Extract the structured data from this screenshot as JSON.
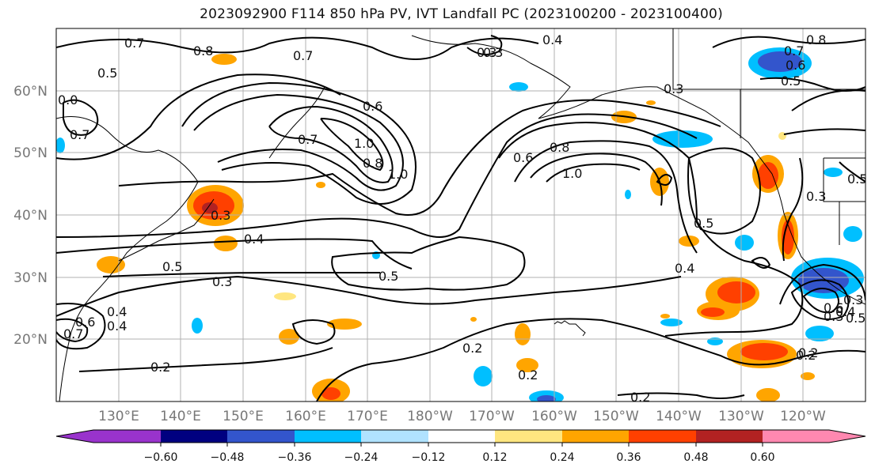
{
  "title": "2023092900 F114 850 hPa PV, IVT Landfall PC (2023100200 - 2023100400)",
  "lat_labels": [
    "60°N",
    "50°N",
    "40°N",
    "30°N",
    "20°N"
  ],
  "lon_labels": [
    "130°E",
    "140°E",
    "150°E",
    "160°E",
    "170°E",
    "180°W",
    "170°W",
    "160°W",
    "150°W",
    "140°W",
    "130°W",
    "120°W"
  ],
  "colorbar": {
    "ticks": [
      "−0.60",
      "−0.48",
      "−0.36",
      "−0.24",
      "−0.12",
      "0.12",
      "0.24",
      "0.36",
      "0.48",
      "0.60"
    ],
    "colors": [
      "#9933cc",
      "#000080",
      "#3355cc",
      "#00bfff",
      "#b0e2ff",
      "#ffffff",
      "#ffe680",
      "#ffa500",
      "#ff4000",
      "#b22222",
      "#ff88b0"
    ]
  },
  "contour_labels": [
    "0.7",
    "0.8",
    "0.5",
    "0.7",
    "0.4",
    "0.3",
    "0.8",
    "0.7",
    "0.6",
    "0.5",
    "0.6",
    "1.0",
    "0.8",
    "1.0",
    "0.6",
    "0.8",
    "1.0",
    "0.3",
    "0.7",
    "0.4",
    "0.5",
    "0.3",
    "0.5",
    "0.3",
    "0.5",
    "0.4",
    "0.3",
    "0.5",
    "0.4",
    "0.2",
    "0.2",
    "0.2",
    "0.2",
    "0.2",
    "0.7",
    "0.6",
    "0.4",
    "0.3",
    "0.4",
    "0.6",
    "0.5",
    "0.3",
    "0.2",
    "0.7",
    "0.3",
    "0.0"
  ]
}
